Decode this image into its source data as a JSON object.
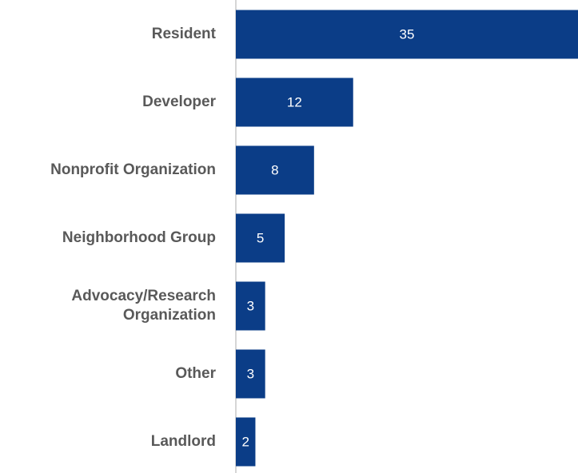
{
  "chart_data": {
    "type": "bar",
    "orientation": "horizontal",
    "categories": [
      "Resident",
      "Developer",
      "Nonprofit Organization",
      "Neighborhood Group",
      "Advocacy/Research Organization",
      "Other",
      "Landlord"
    ],
    "values": [
      35,
      12,
      8,
      5,
      3,
      3,
      2
    ],
    "color": "#0b3d87",
    "xlim": [
      0,
      35
    ]
  }
}
